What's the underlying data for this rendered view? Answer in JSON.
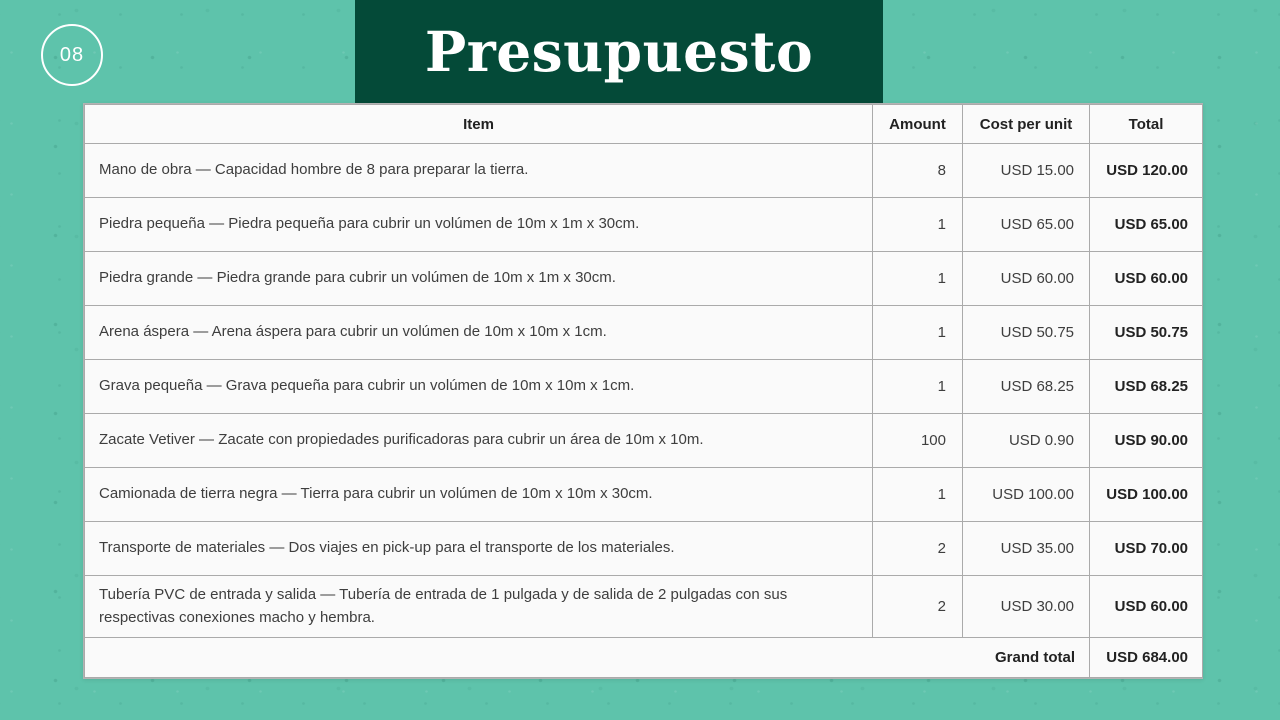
{
  "slide": {
    "page_number": "08",
    "title": "Presupuesto"
  },
  "colors": {
    "background_teal": "#5ec3ab",
    "title_band_green": "#044a38",
    "title_text": "#ffffff",
    "table_background": "#fafafa",
    "table_border_gray": "#aaaaaa",
    "body_text": "#3e3e3e"
  },
  "table": {
    "columns": [
      {
        "label": "Item"
      },
      {
        "label": "Amount"
      },
      {
        "label": "Cost per unit"
      },
      {
        "label": "Total"
      }
    ],
    "rows": [
      {
        "item": "Mano de obra — Capacidad hombre de 8 para preparar la tierra.",
        "amount": "8",
        "cost": "USD 15.00",
        "total": "USD 120.00"
      },
      {
        "item": "Piedra pequeña — Piedra pequeña para cubrir un volúmen de 10m x 1m x 30cm.",
        "amount": "1",
        "cost": "USD 65.00",
        "total": "USD 65.00"
      },
      {
        "item": "Piedra grande — Piedra grande para cubrir un volúmen de 10m x 1m x 30cm.",
        "amount": "1",
        "cost": "USD 60.00",
        "total": "USD 60.00"
      },
      {
        "item": "Arena áspera — Arena áspera para cubrir un volúmen de 10m x 10m x 1cm.",
        "amount": "1",
        "cost": "USD 50.75",
        "total": "USD 50.75"
      },
      {
        "item": "Grava pequeña — Grava pequeña para cubrir un volúmen de 10m x 10m x 1cm.",
        "amount": "1",
        "cost": "USD 68.25",
        "total": "USD 68.25"
      },
      {
        "item": "Zacate Vetiver — Zacate con propiedades purificadoras para cubrir un área de 10m x 10m.",
        "amount": "100",
        "cost": "USD 0.90",
        "total": "USD 90.00"
      },
      {
        "item": "Camionada de tierra negra — Tierra para cubrir un volúmen de 10m x 10m x 30cm.",
        "amount": "1",
        "cost": "USD 100.00",
        "total": "USD 100.00"
      },
      {
        "item": "Transporte de materiales — Dos viajes en pick-up para el transporte de los materiales.",
        "amount": "2",
        "cost": "USD 35.00",
        "total": "USD 70.00"
      },
      {
        "item": "Tubería PVC de entrada y salida — Tubería de entrada de 1 pulgada y de salida de 2 pulgadas con sus respectivas conexiones macho y hembra.",
        "amount": "2",
        "cost": "USD 30.00",
        "total": "USD 60.00"
      }
    ],
    "footer": {
      "label": "Grand total",
      "total": "USD 684.00"
    }
  }
}
